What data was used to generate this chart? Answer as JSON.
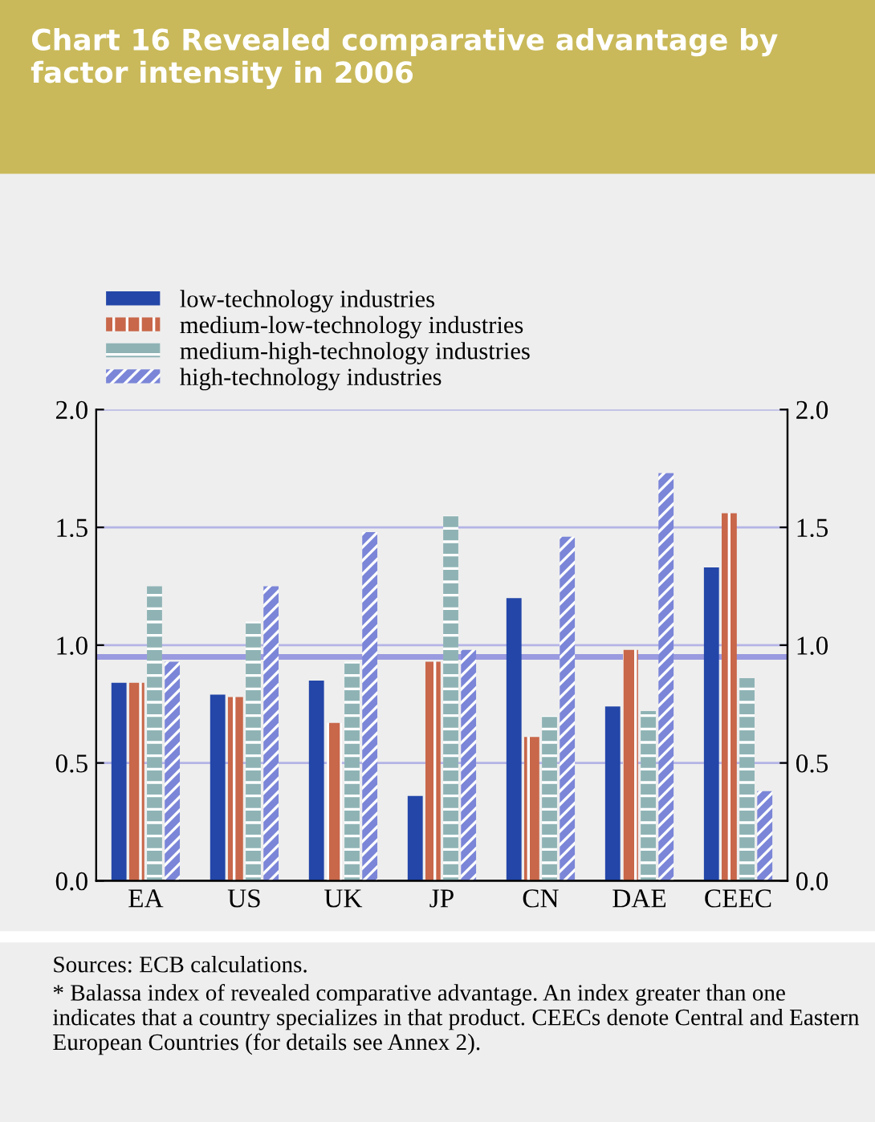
{
  "chart_data": {
    "type": "bar",
    "title": "Chart 16 Revealed comparative advantage by factor intensity in 2006",
    "categories": [
      "EA",
      "US",
      "UK",
      "JP",
      "CN",
      "DAE",
      "CEEC"
    ],
    "series": [
      {
        "name": "low-technology industries",
        "color": "#2346a8",
        "values": [
          0.84,
          0.79,
          0.85,
          0.36,
          1.2,
          0.74,
          1.33
        ]
      },
      {
        "name": "medium-low-technology industries",
        "color": "#c8674a",
        "values": [
          0.84,
          0.78,
          0.67,
          0.93,
          0.61,
          0.98,
          1.56
        ]
      },
      {
        "name": "medium-high-technology industries",
        "color": "#8fb3b5",
        "values": [
          1.25,
          1.1,
          0.93,
          1.55,
          0.7,
          0.72,
          0.86
        ]
      },
      {
        "name": "high-technology industries",
        "color": "#7b86d8",
        "values": [
          0.93,
          1.25,
          1.48,
          0.98,
          1.46,
          1.73,
          0.38
        ]
      }
    ],
    "ylim": [
      0,
      2.0
    ],
    "yticks": [
      {
        "value": 0,
        "label": "0.0"
      },
      0.5,
      {
        "value": 1,
        "label": "1.0"
      },
      1.5,
      {
        "value": 2,
        "label": "2.0"
      }
    ],
    "y2lim": [
      0,
      2.0
    ],
    "y2ticks": [
      {
        "value": 0,
        "label": "0.0"
      },
      0.5,
      {
        "value": 1,
        "label": "1.0"
      },
      1.5,
      {
        "value": 2,
        "label": "2.0"
      }
    ],
    "ref_lines": [
      {
        "axis": "y",
        "value": 0.95,
        "color": "#9a9ae0"
      }
    ],
    "grid": true,
    "legend": "top left",
    "annotations": [
      "Sources: ECB calculations.",
      "* Balassa index of revealed comparative advantage. An index greater than one indicates that a country specializes in that product. CEECs denote Central and Eastern European Countries (for details see Annex 2)."
    ]
  }
}
